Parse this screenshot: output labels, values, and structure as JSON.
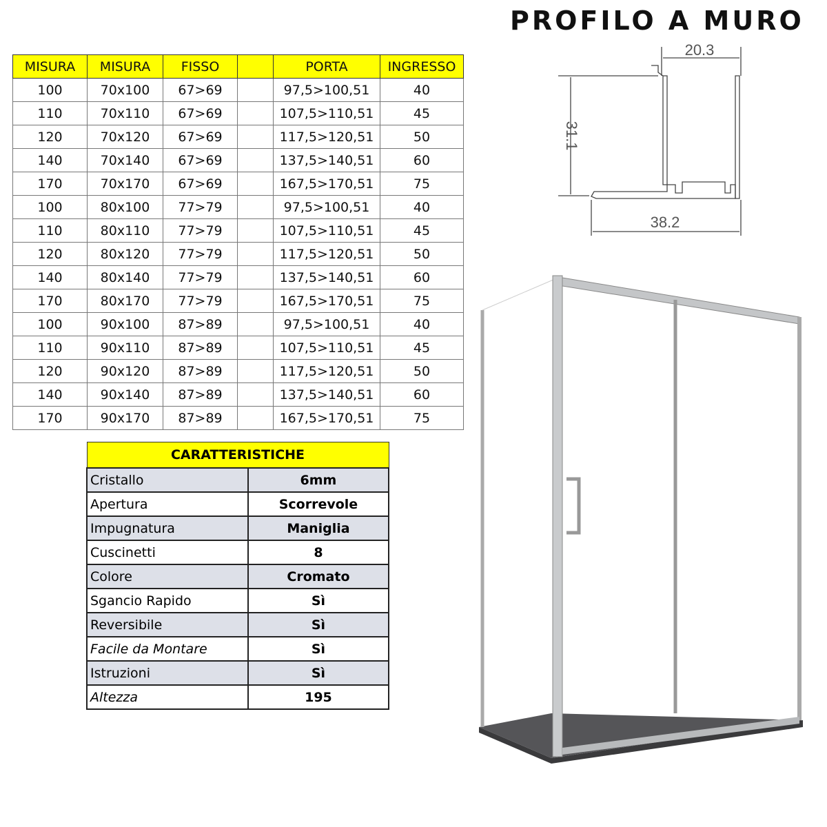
{
  "title": "PROFILO A MURO",
  "profile": {
    "width_top": "20.3",
    "height": "31.1",
    "width_bottom": "38.2"
  },
  "sizes": {
    "headers": [
      "MISURA",
      "MISURA",
      "FISSO",
      "",
      "PORTA",
      "INGRESSO"
    ],
    "rows": [
      [
        "100",
        "70x100",
        "67>69",
        "",
        "97,5>100,51",
        "40"
      ],
      [
        "110",
        "70x110",
        "67>69",
        "",
        "107,5>110,51",
        "45"
      ],
      [
        "120",
        "70x120",
        "67>69",
        "",
        "117,5>120,51",
        "50"
      ],
      [
        "140",
        "70x140",
        "67>69",
        "",
        "137,5>140,51",
        "60"
      ],
      [
        "170",
        "70x170",
        "67>69",
        "",
        "167,5>170,51",
        "75"
      ],
      [
        "100",
        "80x100",
        "77>79",
        "",
        "97,5>100,51",
        "40"
      ],
      [
        "110",
        "80x110",
        "77>79",
        "",
        "107,5>110,51",
        "45"
      ],
      [
        "120",
        "80x120",
        "77>79",
        "",
        "117,5>120,51",
        "50"
      ],
      [
        "140",
        "80x140",
        "77>79",
        "",
        "137,5>140,51",
        "60"
      ],
      [
        "170",
        "80x170",
        "77>79",
        "",
        "167,5>170,51",
        "75"
      ],
      [
        "100",
        "90x100",
        "87>89",
        "",
        "97,5>100,51",
        "40"
      ],
      [
        "110",
        "90x110",
        "87>89",
        "",
        "107,5>110,51",
        "45"
      ],
      [
        "120",
        "90x120",
        "87>89",
        "",
        "117,5>120,51",
        "50"
      ],
      [
        "140",
        "90x140",
        "87>89",
        "",
        "137,5>140,51",
        "60"
      ],
      [
        "170",
        "90x170",
        "87>89",
        "",
        "167,5>170,51",
        "75"
      ]
    ]
  },
  "features": {
    "header": "CARATTERISTICHE",
    "rows": [
      {
        "label": "Cristallo",
        "value": "6mm",
        "italic": false
      },
      {
        "label": "Apertura",
        "value": "Scorrevole",
        "italic": false
      },
      {
        "label": "Impugnatura",
        "value": "Maniglia",
        "italic": false
      },
      {
        "label": "Cuscinetti",
        "value": "8",
        "italic": false
      },
      {
        "label": "Colore",
        "value": "Cromato",
        "italic": false
      },
      {
        "label": "Sgancio Rapido",
        "value": "Sì",
        "italic": false
      },
      {
        "label": "Reversibile",
        "value": "Sì",
        "italic": false
      },
      {
        "label": "Facile da Montare",
        "value": "Sì",
        "italic": true
      },
      {
        "label": "Istruzioni",
        "value": "Sì",
        "italic": false
      },
      {
        "label": "Altezza",
        "value": "195",
        "italic": true
      }
    ]
  }
}
